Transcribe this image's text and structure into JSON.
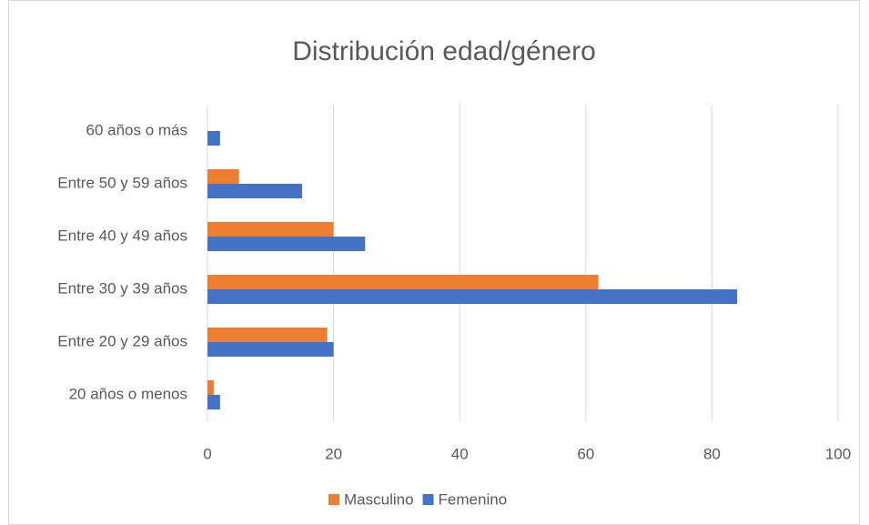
{
  "chart_data": {
    "type": "hbar",
    "title": "Distribución edad/género",
    "categories": [
      "20 años o menos",
      "Entre 20 y 29 años",
      "Entre 30 y 39 años",
      "Entre 40 y 49 años",
      "Entre 50 y 59 años",
      "60 años o más"
    ],
    "series": [
      {
        "name": "Masculino",
        "color": "#ed7d31",
        "values": [
          1,
          19,
          62,
          20,
          5,
          0
        ]
      },
      {
        "name": "Femenino",
        "color": "#4472c4",
        "values": [
          2,
          20,
          84,
          25,
          15,
          2
        ]
      }
    ],
    "xlim": [
      0,
      100
    ],
    "xticks": [
      0,
      20,
      40,
      60,
      80,
      100
    ],
    "grid": true,
    "legend": "bottom"
  }
}
